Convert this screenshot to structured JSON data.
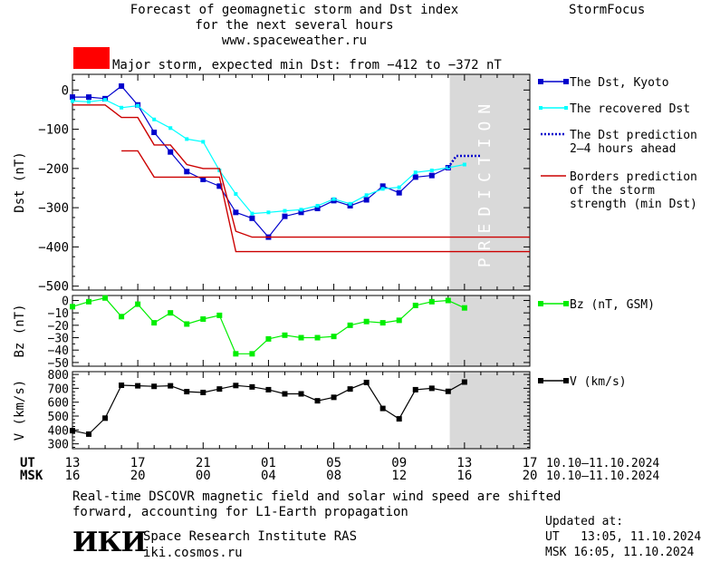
{
  "header": {
    "title_line1": "Forecast of geomagnetic storm and Dst index",
    "title_line2": "for the next several hours",
    "website": "www.spaceweather.ru",
    "brand": "StormFocus"
  },
  "alert": {
    "text": "Major storm, expected min Dst: from −412 to −372 nT",
    "color": "#ff0000"
  },
  "prediction_label": "PREDICTION",
  "colors": {
    "dst": "#0000cc",
    "recovered": "#00ffff",
    "prediction": "#0000cc",
    "borders": "#cc0000",
    "bz": "#00ee00",
    "v": "#000000",
    "prediction_zone": "#d9d9d9"
  },
  "chart_data": {
    "type": "line",
    "x_ticks": {
      "ut": [
        "13",
        "17",
        "21",
        "01",
        "05",
        "09",
        "13",
        "17"
      ],
      "msk": [
        "16",
        "20",
        "00",
        "04",
        "08",
        "12",
        "16",
        "20"
      ],
      "ut_label": "UT",
      "msk_label": "MSK",
      "ut_range": "10.10—11.10.2024",
      "msk_range": "10.10—11.10.2024"
    },
    "panels": [
      {
        "id": "dst",
        "ylabel": "Dst (nT)",
        "ylim": [
          -510,
          40
        ],
        "yticks": [
          "0",
          "−100",
          "−200",
          "−300",
          "−400",
          "−500"
        ],
        "legend": [
          {
            "label": "The Dst, Kyoto",
            "style": "square"
          },
          {
            "label": "The recovered Dst",
            "style": "dot"
          },
          {
            "label": "The Dst prediction\n2–4 hours ahead",
            "style": "dotted"
          },
          {
            "label": "Borders prediction\nof the storm\nstrength (min Dst)",
            "style": "line"
          }
        ],
        "series": [
          {
            "name": "The Dst, Kyoto",
            "x": [
              13,
              14,
              15,
              16,
              17,
              18,
              19,
              20,
              21,
              22,
              23,
              24,
              25,
              26,
              27,
              28,
              29,
              30,
              31,
              32,
              33,
              34,
              35,
              36,
              37
            ],
            "y": [
              -18,
              -18,
              -22,
              10,
              -38,
              -108,
              -158,
              -208,
              -228,
              -245,
              -312,
              -327,
              -375,
              -322,
              -312,
              -302,
              -282,
              -295,
              -280,
              -245,
              -262,
              -222,
              -218,
              -198,
              null
            ]
          },
          {
            "name": "The recovered Dst",
            "x": [
              13,
              14,
              15,
              16,
              17,
              18,
              19,
              20,
              21,
              22,
              23,
              24,
              25,
              26,
              27,
              28,
              29,
              30,
              31,
              32,
              33,
              34,
              35,
              36,
              37
            ],
            "y": [
              -28,
              -30,
              -25,
              -45,
              -40,
              -75,
              -97,
              -125,
              -132,
              -205,
              -265,
              -315,
              -312,
              -308,
              -305,
              -295,
              -278,
              -290,
              -268,
              -252,
              -248,
              -210,
              -205,
              -198,
              -190
            ]
          },
          {
            "name": "The Dst prediction 2–4 hours ahead",
            "x": [
              36,
              36.5,
              37,
              38
            ],
            "y": [
              -198,
              -168,
              -168,
              -168
            ]
          },
          {
            "name": "Borders prediction (upper)",
            "x": [
              13,
              15,
              16,
              17,
              18,
              19,
              20,
              21,
              22,
              23,
              24,
              26,
              41
            ],
            "y": [
              -38,
              -38,
              -70,
              -70,
              -140,
              -140,
              -190,
              -200,
              -200,
              -360,
              -375,
              -375,
              -375
            ]
          },
          {
            "name": "Borders prediction (lower)",
            "x": [
              16,
              17,
              18,
              22,
              23,
              24,
              41
            ],
            "y": [
              -155,
              -155,
              -222,
              -222,
              -412,
              -412,
              -412
            ]
          }
        ]
      },
      {
        "id": "bz",
        "ylabel": "Bz (nT)",
        "ylim": [
          -53,
          4
        ],
        "yticks": [
          "0",
          "−10",
          "−20",
          "−30",
          "−40",
          "−50"
        ],
        "legend": [
          {
            "label": "Bz (nT, GSM)",
            "style": "square"
          }
        ],
        "series": [
          {
            "name": "Bz (nT, GSM)",
            "x": [
              13,
              14,
              15,
              16,
              17,
              18,
              19,
              20,
              21,
              22,
              23,
              24,
              25,
              26,
              27,
              28,
              29,
              30,
              31,
              32,
              33,
              34,
              35,
              36,
              37
            ],
            "y": [
              -5,
              -1,
              2,
              -13,
              -3,
              -18,
              -10,
              -19,
              -15,
              -12,
              -43,
              -43,
              -31,
              -28,
              -30,
              -30,
              -29,
              -20,
              -17,
              -18,
              -16,
              -4,
              -1,
              0,
              -6
            ]
          }
        ]
      },
      {
        "id": "v",
        "ylabel": "V (km/s)",
        "ylim": [
          265,
          820
        ],
        "yticks": [
          "800",
          "700",
          "600",
          "500",
          "400",
          "300"
        ],
        "legend": [
          {
            "label": "V (km/s)",
            "style": "square"
          }
        ],
        "series": [
          {
            "name": "V (km/s)",
            "x": [
              13,
              14,
              15,
              16,
              17,
              18,
              19,
              20,
              21,
              22,
              23,
              24,
              25,
              26,
              27,
              28,
              29,
              30,
              31,
              32,
              33,
              34,
              35,
              36,
              37
            ],
            "y": [
              395,
              370,
              485,
              722,
              718,
              714,
              718,
              676,
              670,
              695,
              720,
              710,
              690,
              660,
              660,
              610,
              635,
              695,
              742,
              555,
              480,
              690,
              700,
              678,
              745
            ]
          }
        ]
      }
    ]
  },
  "footer": {
    "note_line1": "Real-time DSCOVR magnetic field and solar wind speed are shifted",
    "note_line2": "forward, accounting for L1-Earth propagation",
    "logo_text": "ИКИ",
    "institute": "Space Research Institute RAS",
    "institute_url": "iki.cosmos.ru",
    "updated_label": "Updated at:",
    "updated_ut": "UT   13:05, 11.10.2024",
    "updated_msk": "MSK 16:05, 11.10.2024"
  }
}
